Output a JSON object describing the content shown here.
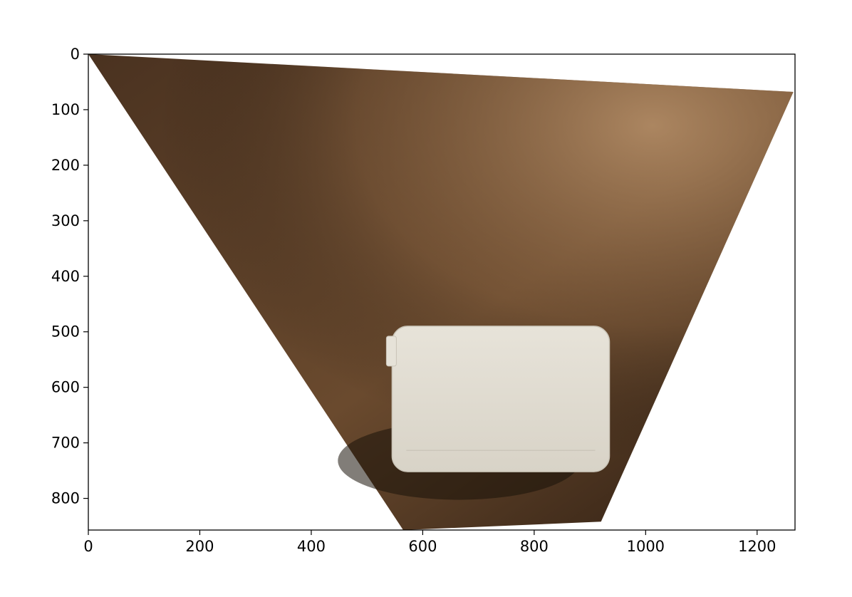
{
  "chart_data": {
    "type": "image",
    "title": "",
    "xlabel": "",
    "ylabel": "",
    "xlim": [
      0,
      1268
    ],
    "ylim": [
      857,
      0
    ],
    "x_ticks": [
      0,
      200,
      400,
      600,
      800,
      1000,
      1200
    ],
    "y_ticks": [
      0,
      100,
      200,
      300,
      400,
      500,
      600,
      700,
      800
    ],
    "x_tick_labels": [
      "0",
      "200",
      "400",
      "600",
      "800",
      "1000",
      "1200"
    ],
    "y_tick_labels": [
      "0",
      "100",
      "200",
      "300",
      "400",
      "500",
      "600",
      "700",
      "800"
    ],
    "grid": false,
    "image_content": {
      "surface_color_dark": "#3a2616",
      "surface_color_light": "#a8855f",
      "object_color": "#e2ddd1",
      "quad_corners": [
        [
          0,
          0
        ],
        [
          1265,
          68
        ],
        [
          920,
          842
        ],
        [
          565,
          857
        ]
      ],
      "object_corners": [
        [
          545,
          490
        ],
        [
          935,
          490
        ],
        [
          935,
          752
        ],
        [
          545,
          752
        ]
      ]
    }
  }
}
